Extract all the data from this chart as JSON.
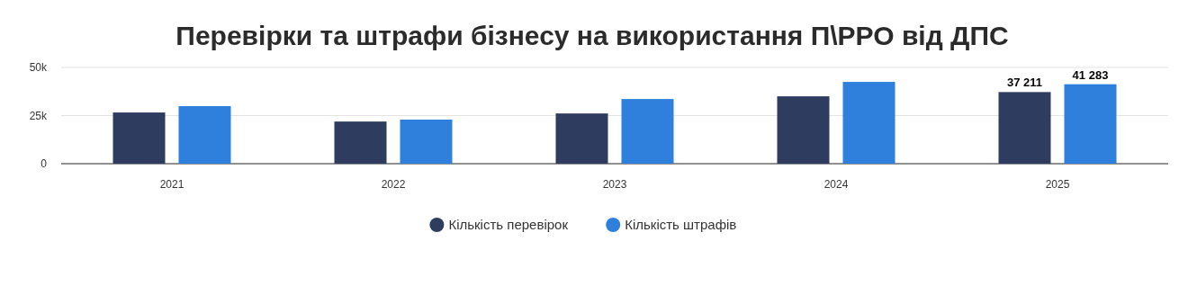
{
  "chart_data": {
    "type": "bar",
    "title": "Перевірки та штрафи бізнесу на використання П\\РРО від ДПС",
    "categories": [
      "2021",
      "2022",
      "2023",
      "2024",
      "2025"
    ],
    "series": [
      {
        "name": "Кількість перевірок",
        "color": "#2e3d5f",
        "values": [
          26600,
          21900,
          26100,
          35000,
          37211
        ],
        "value_labels": [
          null,
          null,
          null,
          null,
          "37 211"
        ]
      },
      {
        "name": "Кількість штрафів",
        "color": "#2f80dc",
        "values": [
          29900,
          22900,
          33600,
          42500,
          41283
        ],
        "value_labels": [
          null,
          null,
          null,
          null,
          "41 283"
        ]
      }
    ],
    "ylim": [
      0,
      50000
    ],
    "yticks": [
      {
        "value": 0,
        "label": "0"
      },
      {
        "value": 25000,
        "label": "25k"
      },
      {
        "value": 50000,
        "label": "50k"
      }
    ],
    "grid": "y",
    "legend": "bottom"
  }
}
